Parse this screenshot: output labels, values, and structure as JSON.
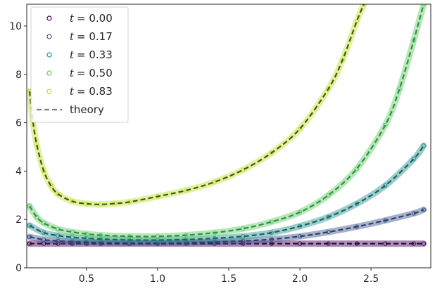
{
  "chart_data": {
    "type": "scatter",
    "title": "",
    "xlabel": "",
    "ylabel": "",
    "xlim": [
      0.08,
      2.92
    ],
    "ylim": [
      0,
      10.9
    ],
    "x_ticks": [
      0.5,
      1.0,
      1.5,
      2.0,
      2.5
    ],
    "x_tick_labels": [
      "0.5",
      "1.0",
      "1.5",
      "2.0",
      "2.5"
    ],
    "y_ticks": [
      0,
      2,
      4,
      6,
      8,
      10
    ],
    "y_tick_labels": [
      "0",
      "2",
      "4",
      "6",
      "8",
      "10"
    ],
    "grid": false,
    "legend_position": "upper-left",
    "series": [
      {
        "name": "t = 0.00",
        "label_var": "t",
        "label_value": "= 0.00",
        "color": "#440154",
        "line_color": "#2b0a3d",
        "x": [
          0.1,
          0.2,
          0.3,
          0.4,
          0.5,
          0.6,
          0.8,
          1.0,
          1.2,
          1.4,
          1.6,
          1.8,
          2.0,
          2.2,
          2.4,
          2.6,
          2.8,
          2.87
        ],
        "y": [
          1.0,
          1.0,
          1.0,
          1.0,
          1.0,
          1.0,
          1.0,
          1.0,
          1.0,
          1.0,
          1.0,
          1.0,
          1.0,
          1.0,
          1.0,
          1.0,
          1.0,
          1.0
        ]
      },
      {
        "name": "t = 0.17",
        "label_var": "t",
        "label_value": "= 0.17",
        "color": "#3b528b",
        "line_color": "#2c3e6b",
        "x": [
          0.1,
          0.2,
          0.3,
          0.4,
          0.5,
          0.6,
          0.8,
          1.0,
          1.2,
          1.4,
          1.6,
          1.8,
          2.0,
          2.2,
          2.4,
          2.6,
          2.8,
          2.87
        ],
        "y": [
          1.28,
          1.16,
          1.11,
          1.08,
          1.06,
          1.05,
          1.04,
          1.04,
          1.05,
          1.07,
          1.11,
          1.18,
          1.3,
          1.48,
          1.7,
          1.96,
          2.25,
          2.4
        ]
      },
      {
        "name": "t = 0.33",
        "label_var": "t",
        "label_value": "= 0.33",
        "color": "#21918c",
        "line_color": "#1a5f5c",
        "x": [
          0.1,
          0.2,
          0.3,
          0.4,
          0.5,
          0.6,
          0.8,
          1.0,
          1.2,
          1.4,
          1.6,
          1.8,
          2.0,
          2.2,
          2.4,
          2.6,
          2.8,
          2.87
        ],
        "y": [
          1.75,
          1.45,
          1.33,
          1.26,
          1.22,
          1.19,
          1.16,
          1.15,
          1.17,
          1.22,
          1.3,
          1.45,
          1.72,
          2.1,
          2.65,
          3.4,
          4.5,
          5.05
        ]
      },
      {
        "name": "t = 0.50",
        "label_var": "t",
        "label_value": "= 0.50",
        "color": "#5ec962",
        "line_color": "#2f8f3f",
        "x": [
          0.1,
          0.15,
          0.2,
          0.3,
          0.4,
          0.5,
          0.6,
          0.8,
          1.0,
          1.2,
          1.4,
          1.6,
          1.8,
          2.0,
          2.2,
          2.4,
          2.6,
          2.7,
          2.8,
          2.87
        ],
        "y": [
          2.55,
          2.1,
          1.85,
          1.6,
          1.48,
          1.4,
          1.35,
          1.3,
          1.3,
          1.35,
          1.45,
          1.62,
          1.9,
          2.3,
          3.0,
          4.1,
          5.9,
          7.4,
          9.4,
          10.9
        ]
      },
      {
        "name": "t = 0.83",
        "label_var": "t",
        "label_value": "= 0.83",
        "color": "#bddf26",
        "line_color": "#3d5a0e",
        "x": [
          0.1,
          0.12,
          0.15,
          0.2,
          0.25,
          0.3,
          0.4,
          0.5,
          0.6,
          0.7,
          0.8,
          1.0,
          1.2,
          1.4,
          1.6,
          1.8,
          2.0,
          2.2,
          2.3,
          2.4,
          2.45
        ],
        "y": [
          7.3,
          6.2,
          5.1,
          4.0,
          3.4,
          3.05,
          2.75,
          2.65,
          2.62,
          2.66,
          2.72,
          2.95,
          3.2,
          3.55,
          4.05,
          4.75,
          5.75,
          7.4,
          8.6,
          10.2,
          10.9
        ]
      }
    ],
    "theory_legend_label": "theory",
    "theory_legend_color": "#7f7f7f"
  }
}
